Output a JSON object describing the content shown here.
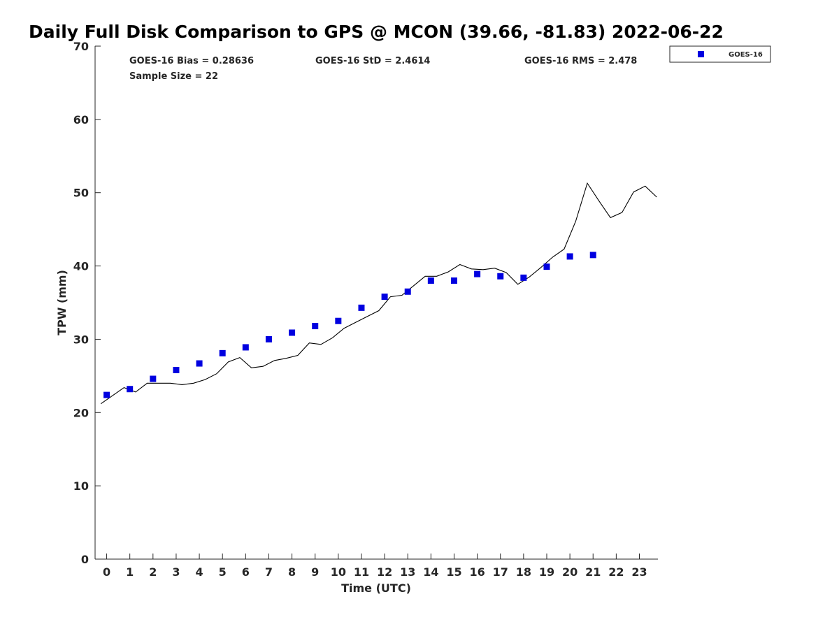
{
  "chart_data": {
    "type": "scatter",
    "title": "Daily Full Disk Comparison to GPS @ MCON (39.66, -81.83) 2022-06-22",
    "xlabel": "Time (UTC)",
    "ylabel": "TPW (mm)",
    "xlim": [
      -0.5,
      23.8
    ],
    "ylim": [
      0,
      70
    ],
    "x_ticks": [
      0,
      1,
      2,
      3,
      4,
      5,
      6,
      7,
      8,
      9,
      10,
      11,
      12,
      13,
      14,
      15,
      16,
      17,
      18,
      19,
      20,
      21,
      22,
      23
    ],
    "y_ticks": [
      0,
      10,
      20,
      30,
      40,
      50,
      60,
      70
    ],
    "grid": false,
    "legend_position": "outside-top-right",
    "stats": {
      "bias": "GOES-16 Bias = 0.28636",
      "std": "GOES-16 StD = 2.4614",
      "rms": "GOES-16 RMS = 2.478",
      "sample": "Sample Size = 22"
    },
    "series": [
      {
        "name": "GOES-16",
        "kind": "scatter",
        "marker": "square",
        "color": "#0000e0",
        "x": [
          0,
          1,
          2,
          3,
          4,
          5,
          6,
          7,
          8,
          9,
          10,
          11,
          12,
          13,
          14,
          15,
          16,
          17,
          18,
          19,
          20,
          21
        ],
        "y": [
          22.4,
          23.2,
          24.6,
          25.8,
          26.7,
          28.1,
          28.9,
          30.0,
          30.9,
          31.8,
          32.5,
          34.3,
          35.8,
          36.5,
          38.0,
          38.0,
          38.9,
          38.6,
          38.4,
          39.9,
          41.3,
          41.5
        ]
      },
      {
        "kind": "line",
        "color": "#000000",
        "x": [
          -0.25,
          0.25,
          0.75,
          1.25,
          1.75,
          2.25,
          2.75,
          3.25,
          3.75,
          4.25,
          4.75,
          5.25,
          5.75,
          6.25,
          6.75,
          7.25,
          7.75,
          8.25,
          8.75,
          9.25,
          9.75,
          10.25,
          10.75,
          11.25,
          11.75,
          12.25,
          12.75,
          13.25,
          13.75,
          14.25,
          14.75,
          15.25,
          15.75,
          16.25,
          16.75,
          17.25,
          17.75,
          18.25,
          18.75,
          19.25,
          19.75,
          20.25,
          20.75,
          21.25,
          21.75,
          22.25,
          22.75,
          23.25,
          23.75
        ],
        "y": [
          21.2,
          22.3,
          23.4,
          22.8,
          24.0,
          24.0,
          24.0,
          23.8,
          24.0,
          24.5,
          25.3,
          26.9,
          27.5,
          26.1,
          26.3,
          27.1,
          27.4,
          27.8,
          29.5,
          29.3,
          30.2,
          31.5,
          32.3,
          33.1,
          33.9,
          35.8,
          36.0,
          37.3,
          38.6,
          38.6,
          39.2,
          40.2,
          39.6,
          39.5,
          39.7,
          39.1,
          37.5,
          38.5,
          39.8,
          41.2,
          42.3,
          46.1,
          51.3,
          48.9,
          46.6,
          47.3,
          50.1,
          50.9,
          49.4
        ]
      }
    ]
  }
}
